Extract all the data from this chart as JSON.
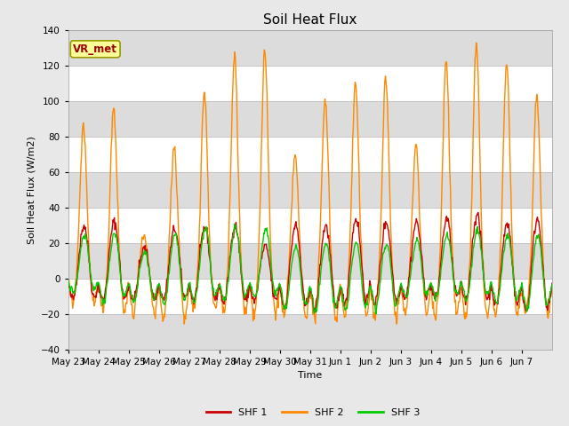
{
  "title": "Soil Heat Flux",
  "ylabel": "Soil Heat Flux (W/m2)",
  "xlabel": "Time",
  "ylim": [
    -40,
    140
  ],
  "yticks": [
    -40,
    -20,
    0,
    20,
    40,
    60,
    80,
    100,
    120,
    140
  ],
  "x_labels": [
    "May 23",
    "May 24",
    "May 25",
    "May 26",
    "May 27",
    "May 28",
    "May 29",
    "May 30",
    "May 31",
    "Jun 1",
    "Jun 2",
    "Jun 3",
    "Jun 4",
    "Jun 5",
    "Jun 6",
    "Jun 7"
  ],
  "shf1_color": "#cc0000",
  "shf2_color": "#ff8800",
  "shf3_color": "#00cc00",
  "shf1_label": "SHF 1",
  "shf2_label": "SHF 2",
  "shf3_label": "SHF 3",
  "annotation_text": "VR_met",
  "annotation_color": "#990000",
  "annotation_bg": "#ffff99",
  "annotation_border": "#999900",
  "fig_bg_color": "#e8e8e8",
  "plot_bg": "#ffffff",
  "band_color": "#dcdcdc",
  "title_fontsize": 11,
  "label_fontsize": 8,
  "tick_fontsize": 7.5,
  "legend_fontsize": 8,
  "linewidth": 1.0,
  "shf1_peaks": [
    30,
    32,
    17,
    28,
    29,
    30,
    18,
    30,
    30,
    34,
    32,
    32,
    34,
    36,
    31,
    34
  ],
  "shf2_peaks": [
    87,
    96,
    23,
    75,
    105,
    127,
    128,
    70,
    102,
    110,
    113,
    76,
    124,
    131,
    122,
    104
  ],
  "shf3_peaks": [
    25,
    26,
    15,
    25,
    29,
    30,
    28,
    18,
    20,
    20,
    20,
    22,
    25,
    28,
    25,
    25
  ],
  "shf1_troughs": [
    -13,
    -14,
    -13,
    -13,
    -14,
    -15,
    -14,
    -18,
    -19,
    -15,
    -15,
    -12,
    -13,
    -14,
    -17,
    -20
  ],
  "shf2_troughs": [
    -14,
    -19,
    -21,
    -24,
    -18,
    -20,
    -20,
    -22,
    -23,
    -21,
    -22,
    -20,
    -21,
    -22,
    -21,
    -21
  ],
  "shf3_troughs": [
    -9,
    -14,
    -14,
    -16,
    -14,
    -13,
    -12,
    -18,
    -20,
    -19,
    -18,
    -12,
    -12,
    -13,
    -15,
    -19
  ]
}
